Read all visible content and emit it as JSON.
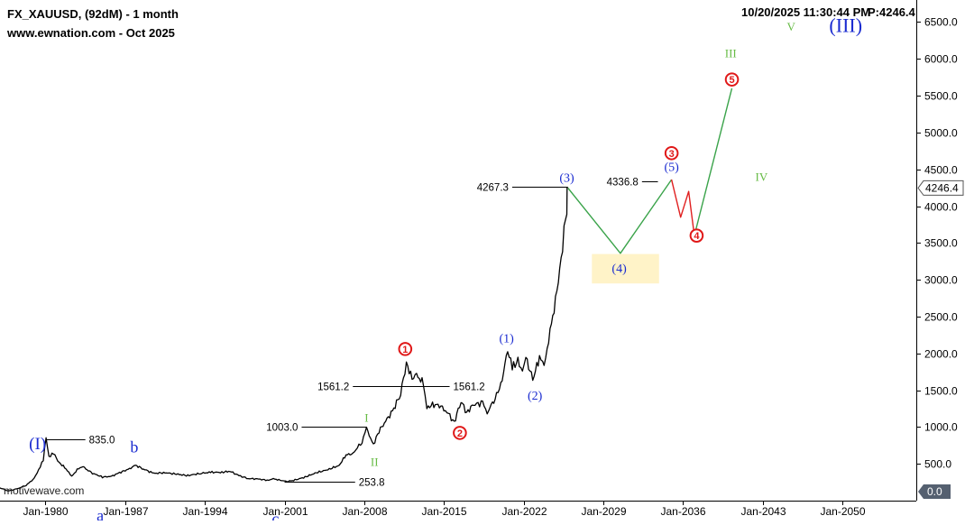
{
  "header": {
    "symbol_line": "FX_XAUUSD, (92dM) - 1 month",
    "source_line": "www.ewnation.com  - Oct 2025",
    "timestamp": "10/20/2025 11:30:44 PM",
    "price_label": "P:4246.4"
  },
  "watermark": "motivewave.com",
  "colors": {
    "price": "#000000",
    "projection_green": "#3aa34a",
    "projection_red": "#e02020",
    "label_blue": "#1a2bd0",
    "label_green": "#66bb44",
    "circle_red": "#e01818",
    "target_box": "#fff3c8"
  },
  "chart_data": {
    "type": "line",
    "title": "FX_XAUUSD, (92dM) - 1 month",
    "xlabel": "",
    "ylabel": "",
    "y_axis_side": "right",
    "ylim": [
      0,
      6800
    ],
    "xlim": [
      1976.0,
      2056.5
    ],
    "grid": false,
    "x_ticks": [
      {
        "label": "Jan-1980",
        "x": 1980
      },
      {
        "label": "Jan-1987",
        "x": 1987
      },
      {
        "label": "Jan-1994",
        "x": 1994
      },
      {
        "label": "Jan-2001",
        "x": 2001
      },
      {
        "label": "Jan-2008",
        "x": 2008
      },
      {
        "label": "Jan-2015",
        "x": 2015
      },
      {
        "label": "Jan-2022",
        "x": 2022
      },
      {
        "label": "Jan-2029",
        "x": 2029
      },
      {
        "label": "Jan-2036",
        "x": 2036
      },
      {
        "label": "Jan-2043",
        "x": 2043
      },
      {
        "label": "Jan-2050",
        "x": 2050
      }
    ],
    "y_ticks": [
      500,
      1000,
      1500,
      2000,
      2500,
      3000,
      3500,
      4000,
      4500,
      5000,
      5500,
      6000,
      6500
    ],
    "y_tick_labels": [
      "500.0",
      "1000.0",
      "1500.0",
      "2000.0",
      "2500.0",
      "3000.0",
      "3500.0",
      "4000.0",
      "4500.0",
      "5000.0",
      "5500.0",
      "6000.0",
      "6500.0"
    ],
    "current_price": {
      "value": 4246.4,
      "label": "4246.4"
    },
    "zero_label": {
      "value": 0,
      "label": "0.0"
    },
    "series": [
      {
        "kind": "price",
        "points": [
          [
            1975.9,
            180
          ],
          [
            1976.7,
            130
          ],
          [
            1977.5,
            160
          ],
          [
            1978.3,
            210
          ],
          [
            1979.0,
            300
          ],
          [
            1979.4,
            420
          ],
          [
            1979.8,
            560
          ],
          [
            1980.05,
            835
          ],
          [
            1980.3,
            600
          ],
          [
            1980.7,
            640
          ],
          [
            1981.2,
            520
          ],
          [
            1981.8,
            430
          ],
          [
            1982.3,
            330
          ],
          [
            1982.9,
            440
          ],
          [
            1983.3,
            460
          ],
          [
            1984.0,
            380
          ],
          [
            1985.0,
            320
          ],
          [
            1985.8,
            330
          ],
          [
            1986.5,
            380
          ],
          [
            1987.5,
            440
          ],
          [
            1987.9,
            480
          ],
          [
            1988.6,
            430
          ],
          [
            1989.5,
            370
          ],
          [
            1990.5,
            380
          ],
          [
            1991.5,
            360
          ],
          [
            1992.5,
            340
          ],
          [
            1993.6,
            370
          ],
          [
            1994.5,
            385
          ],
          [
            1995.5,
            385
          ],
          [
            1996.2,
            400
          ],
          [
            1997.0,
            340
          ],
          [
            1997.8,
            300
          ],
          [
            1998.6,
            295
          ],
          [
            1999.6,
            275
          ],
          [
            1999.9,
            300
          ],
          [
            2000.5,
            280
          ],
          [
            2001.2,
            260
          ],
          [
            2001.8,
            275
          ],
          [
            2002.8,
            320
          ],
          [
            2003.8,
            380
          ],
          [
            2004.8,
            420
          ],
          [
            2005.8,
            480
          ],
          [
            2006.4,
            620
          ],
          [
            2007.0,
            640
          ],
          [
            2007.8,
            800
          ],
          [
            2008.2,
            980
          ],
          [
            2008.8,
            760
          ],
          [
            2009.3,
            950
          ],
          [
            2010.0,
            1100
          ],
          [
            2010.6,
            1250
          ],
          [
            2011.2,
            1450
          ],
          [
            2011.7,
            1880
          ],
          [
            2012.2,
            1650
          ],
          [
            2012.6,
            1700
          ],
          [
            2013.2,
            1600
          ],
          [
            2013.5,
            1250
          ],
          [
            2014.0,
            1300
          ],
          [
            2014.6,
            1300
          ],
          [
            2015.4,
            1180
          ],
          [
            2015.9,
            1060
          ],
          [
            2016.5,
            1350
          ],
          [
            2017.0,
            1200
          ],
          [
            2017.6,
            1300
          ],
          [
            2018.4,
            1330
          ],
          [
            2018.8,
            1190
          ],
          [
            2019.5,
            1400
          ],
          [
            2020.0,
            1550
          ],
          [
            2020.6,
            2060
          ],
          [
            2021.0,
            1800
          ],
          [
            2021.5,
            1900
          ],
          [
            2021.9,
            1780
          ],
          [
            2022.2,
            1950
          ],
          [
            2022.8,
            1640
          ],
          [
            2023.4,
            1950
          ],
          [
            2023.8,
            1830
          ],
          [
            2024.2,
            2200
          ],
          [
            2024.8,
            2700
          ],
          [
            2025.3,
            3300
          ],
          [
            2025.8,
            4000
          ],
          [
            2025.85,
            4246
          ]
        ]
      },
      {
        "kind": "projection-green",
        "points": [
          [
            2025.9,
            4246
          ],
          [
            2030.5,
            3360
          ],
          [
            2035.0,
            4360
          ]
        ]
      },
      {
        "kind": "projection-red",
        "points": [
          [
            2035.0,
            4360
          ],
          [
            2035.8,
            3850
          ],
          [
            2036.5,
            4200
          ],
          [
            2037.0,
            3600
          ]
        ]
      },
      {
        "kind": "projection-green",
        "points": [
          [
            2037.0,
            3600
          ],
          [
            2040.3,
            5600
          ]
        ]
      }
    ],
    "target_box": {
      "x": [
        2028.0,
        2033.9
      ],
      "y": [
        2950,
        3350
      ]
    },
    "levels": [
      {
        "label": "835.0",
        "value": 835,
        "x_from": 1980.0,
        "x_to": 1983.5,
        "label_side": "right"
      },
      {
        "label": "253.8",
        "value": 253.8,
        "x_from": 2001.0,
        "x_to": 2007.2,
        "label_side": "right"
      },
      {
        "label": "1003.0",
        "value": 1003,
        "x_from": 2002.5,
        "x_to": 2008.2,
        "label_side": "left"
      },
      {
        "label": "1561.2",
        "value": 1561.2,
        "x_from": 2007.0,
        "x_to": 2013.8,
        "label_side": "left"
      },
      {
        "label": "1561.2",
        "value": 1561.2,
        "x_from": 2011.9,
        "x_to": 2015.5,
        "label_side": "right"
      },
      {
        "label": "4267.3",
        "value": 4267.3,
        "x_from": 2021.0,
        "x_to": 2025.9,
        "label_side": "left"
      },
      {
        "label": "4336.8",
        "value": 4336.8,
        "x_from": 2032.4,
        "x_to": 2033.8,
        "label_side": "left"
      }
    ],
    "wave_labels": [
      {
        "text": "(I)",
        "style": "blue-serif-lg",
        "x": 1979.3,
        "y": 780
      },
      {
        "text": "a",
        "style": "blue-serif-md",
        "x": 1984.8,
        "y": -200
      },
      {
        "text": "b",
        "style": "blue-serif-md",
        "x": 1987.8,
        "y": 730
      },
      {
        "text": "c",
        "style": "blue-serif-md",
        "x": 2000.2,
        "y": -240
      },
      {
        "text": "I",
        "style": "green-serif-sm",
        "x": 2008.2,
        "y": 1130
      },
      {
        "text": "II",
        "style": "green-serif-sm",
        "x": 2008.9,
        "y": 530
      },
      {
        "text": "1",
        "style": "red-circle",
        "x": 2011.6,
        "y": 2060
      },
      {
        "text": "2",
        "style": "red-circle",
        "x": 2016.4,
        "y": 920
      },
      {
        "text": "(1)",
        "style": "blue-serif-sm",
        "x": 2020.5,
        "y": 2210
      },
      {
        "text": "(2)",
        "style": "blue-serif-sm",
        "x": 2023.0,
        "y": 1430
      },
      {
        "text": "(3)",
        "style": "blue-serif-sm",
        "x": 2025.8,
        "y": 4390
      },
      {
        "text": "(4)",
        "style": "blue-serif-sm",
        "x": 2030.4,
        "y": 3160
      },
      {
        "text": "(5)",
        "style": "blue-serif-sm",
        "x": 2035.0,
        "y": 4540
      },
      {
        "text": "3",
        "style": "red-circle",
        "x": 2035.0,
        "y": 4720
      },
      {
        "text": "4",
        "style": "red-circle",
        "x": 2037.2,
        "y": 3600
      },
      {
        "text": "5",
        "style": "red-circle",
        "x": 2040.3,
        "y": 5720
      },
      {
        "text": "III",
        "style": "green-serif-sm",
        "x": 2040.2,
        "y": 6080
      },
      {
        "text": "IV",
        "style": "green-serif-sm",
        "x": 2042.9,
        "y": 4400
      },
      {
        "text": "V",
        "style": "green-serif-sm",
        "x": 2045.5,
        "y": 6440
      },
      {
        "text": "(III)",
        "style": "blue-serif-xl",
        "x": 2050.3,
        "y": 6460
      }
    ]
  }
}
